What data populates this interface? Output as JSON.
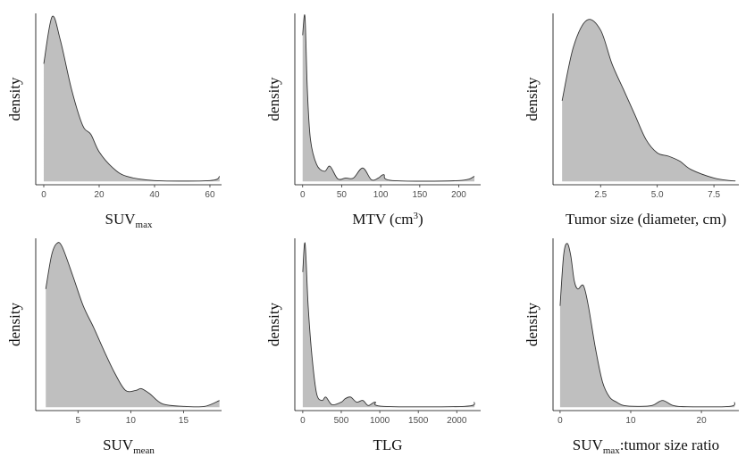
{
  "chart_data": [
    {
      "type": "density",
      "y_label": "density",
      "x_label_parts": [
        {
          "text": "SUV"
        },
        {
          "text": "max",
          "sub": true
        }
      ],
      "x": [
        0,
        3,
        6,
        10,
        14,
        17,
        20,
        25,
        30,
        40,
        60,
        63.5
      ],
      "values": [
        0.7,
        0.98,
        0.84,
        0.55,
        0.335,
        0.28,
        0.176,
        0.08,
        0.03,
        0.005,
        0.005,
        0.03
      ],
      "xlim": [
        -2.9,
        64.2
      ],
      "ylim": [
        -0.02,
        1.0
      ],
      "xticks": [
        0,
        20,
        40,
        60
      ],
      "color": "#bfbfbf"
    },
    {
      "type": "density",
      "y_label": "density",
      "x_label_parts": [
        {
          "text": "MTV (cm"
        },
        {
          "text": "3",
          "sup": true
        },
        {
          "text": ")"
        }
      ],
      "x": [
        0,
        3,
        6,
        10,
        18,
        28,
        35,
        45,
        55,
        65,
        77,
        88,
        97,
        104,
        115,
        200,
        220
      ],
      "values": [
        0.87,
        0.98,
        0.55,
        0.25,
        0.1,
        0.06,
        0.09,
        0.015,
        0.02,
        0.02,
        0.08,
        0.01,
        0.02,
        0.04,
        0.005,
        0.005,
        0.03
      ],
      "xlim": [
        -10,
        228
      ],
      "ylim": [
        -0.02,
        1.0
      ],
      "xticks": [
        0,
        50,
        100,
        150,
        200
      ],
      "color": "#bfbfbf"
    },
    {
      "type": "density",
      "y_label": "density",
      "x_label_parts": [
        {
          "text": "Tumor size (diameter, cm)"
        }
      ],
      "x": [
        0.8,
        1.3,
        1.9,
        2.5,
        3,
        3.5,
        4,
        4.5,
        5,
        5.5,
        6,
        6.5,
        7.5,
        8.2,
        8.45
      ],
      "values": [
        0.48,
        0.8,
        0.96,
        0.9,
        0.7,
        0.55,
        0.4,
        0.25,
        0.17,
        0.15,
        0.12,
        0.07,
        0.02,
        0.005,
        0.003
      ],
      "xlim": [
        0.4,
        8.6
      ],
      "ylim": [
        -0.02,
        1.0
      ],
      "xticks": [
        {
          "value": 2.5,
          "label": "2.5"
        },
        {
          "value": 5,
          "label": "5.0"
        },
        {
          "value": 7.5,
          "label": "7.5"
        }
      ],
      "color": "#bfbfbf"
    },
    {
      "type": "density",
      "y_label": "density",
      "x_label_parts": [
        {
          "text": "SUV"
        },
        {
          "text": "mean",
          "sub": true
        }
      ],
      "x": [
        1.95,
        2.5,
        3,
        3.5,
        4.5,
        5.5,
        6.5,
        7.5,
        8.5,
        9.5,
        10.5,
        11,
        11.8,
        13,
        15,
        17,
        18.4
      ],
      "values": [
        0.7,
        0.9,
        0.97,
        0.95,
        0.78,
        0.6,
        0.47,
        0.33,
        0.2,
        0.1,
        0.1,
        0.11,
        0.08,
        0.02,
        0.005,
        0.005,
        0.04
      ],
      "xlim": [
        1,
        18.6
      ],
      "ylim": [
        -0.02,
        1.0
      ],
      "xticks": [
        5,
        10,
        15
      ],
      "color": "#bfbfbf"
    },
    {
      "type": "density",
      "y_label": "density",
      "x_label_parts": [
        {
          "text": "TLG"
        }
      ],
      "x": [
        0,
        30,
        70,
        120,
        180,
        250,
        300,
        380,
        500,
        550,
        620,
        700,
        780,
        850,
        940,
        1050,
        2100,
        2230
      ],
      "values": [
        0.8,
        0.97,
        0.6,
        0.3,
        0.08,
        0.04,
        0.06,
        0.015,
        0.03,
        0.05,
        0.06,
        0.03,
        0.04,
        0.01,
        0.03,
        0.005,
        0.005,
        0.03
      ],
      "xlim": [
        -103,
        2310
      ],
      "ylim": [
        -0.02,
        1.0
      ],
      "xticks": [
        0,
        500,
        1000,
        1500,
        2000
      ],
      "color": "#bfbfbf"
    },
    {
      "type": "density",
      "y_label": "density",
      "x_label_parts": [
        {
          "text": "SUV"
        },
        {
          "text": "max",
          "sub": true
        },
        {
          "text": ":tumor size ratio"
        }
      ],
      "x": [
        0,
        0.5,
        1,
        1.5,
        2,
        2.5,
        3.3,
        4,
        5,
        6,
        7,
        8,
        9,
        11,
        13,
        14.5,
        16,
        18,
        24,
        24.7
      ],
      "values": [
        0.6,
        0.9,
        0.97,
        0.9,
        0.75,
        0.7,
        0.72,
        0.6,
        0.35,
        0.15,
        0.06,
        0.03,
        0.01,
        0.005,
        0.01,
        0.04,
        0.01,
        0.003,
        0.005,
        0.03
      ],
      "xlim": [
        -1,
        25.3
      ],
      "ylim": [
        -0.02,
        1.0
      ],
      "xticks": [
        0,
        10,
        20
      ],
      "color": "#bfbfbf"
    }
  ]
}
